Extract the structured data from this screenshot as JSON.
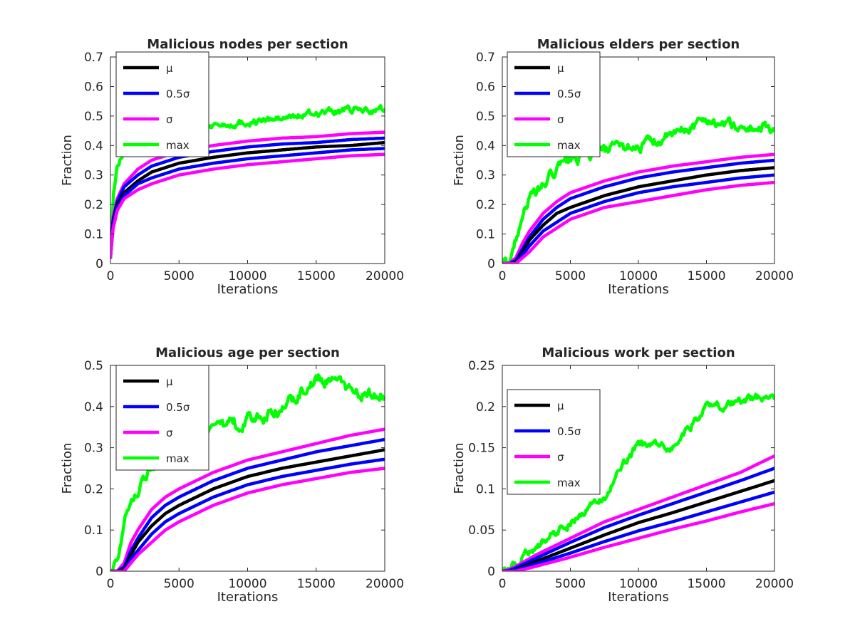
{
  "colors": {
    "mu": "#000000",
    "half_sigma": "#0000ff",
    "sigma": "#ff00ff",
    "max": "#00ff00",
    "axes": "#262626",
    "background": "#ffffff"
  },
  "chart_data": [
    {
      "type": "line",
      "title": "Malicious nodes per section",
      "xlabel": "Iterations",
      "ylabel": "Fraction",
      "xlim": [
        0,
        20000
      ],
      "ylim": [
        0,
        0.7
      ],
      "xticks": [
        0,
        5000,
        10000,
        15000,
        20000
      ],
      "xtick_labels": [
        "0",
        "5000",
        "10000",
        "15000",
        "20000"
      ],
      "yticks": [
        0,
        0.1,
        0.2,
        0.3,
        0.4,
        0.5,
        0.6,
        0.7
      ],
      "ytick_labels": [
        "0",
        "0.1",
        "0.2",
        "0.3",
        "0.4",
        "0.5",
        "0.6",
        "0.7"
      ],
      "grid": false,
      "legend_position": "top-left",
      "x": [
        0,
        200,
        500,
        1000,
        2000,
        3000,
        5000,
        7500,
        10000,
        12500,
        15000,
        17500,
        20000
      ],
      "series": [
        {
          "name": "max",
          "color": "#00ff00",
          "noise": 0.012,
          "values": [
            0.02,
            0.22,
            0.33,
            0.38,
            0.42,
            0.44,
            0.46,
            0.47,
            0.48,
            0.49,
            0.51,
            0.52,
            0.52
          ]
        },
        {
          "name": "σ",
          "color": "#ff00ff",
          "values": [
            0.02,
            0.16,
            0.22,
            0.27,
            0.32,
            0.35,
            0.38,
            0.4,
            0.415,
            0.425,
            0.43,
            0.44,
            0.445
          ]
        },
        {
          "name": "0.5σ",
          "color": "#0000ff",
          "values": [
            0.02,
            0.15,
            0.21,
            0.26,
            0.3,
            0.33,
            0.36,
            0.38,
            0.395,
            0.405,
            0.41,
            0.42,
            0.425
          ]
        },
        {
          "name": "μ",
          "color": "#000000",
          "values": [
            0.02,
            0.14,
            0.2,
            0.24,
            0.28,
            0.31,
            0.34,
            0.36,
            0.375,
            0.385,
            0.395,
            0.4,
            0.41
          ]
        },
        {
          "name": "0.5σ",
          "color": "#0000ff",
          "values": [
            0.02,
            0.13,
            0.19,
            0.23,
            0.27,
            0.29,
            0.32,
            0.34,
            0.355,
            0.365,
            0.375,
            0.385,
            0.39
          ]
        },
        {
          "name": "σ",
          "color": "#ff00ff",
          "values": [
            0.02,
            0.12,
            0.18,
            0.22,
            0.25,
            0.27,
            0.3,
            0.32,
            0.335,
            0.345,
            0.355,
            0.365,
            0.37
          ]
        }
      ],
      "legend": [
        "μ",
        "0.5σ",
        "σ",
        "max"
      ]
    },
    {
      "type": "line",
      "title": "Malicious elders per section",
      "xlabel": "Iterations",
      "ylabel": "Fraction",
      "xlim": [
        0,
        20000
      ],
      "ylim": [
        0,
        0.7
      ],
      "xticks": [
        0,
        5000,
        10000,
        15000,
        20000
      ],
      "xtick_labels": [
        "0",
        "5000",
        "10000",
        "15000",
        "20000"
      ],
      "yticks": [
        0,
        0.1,
        0.2,
        0.3,
        0.4,
        0.5,
        0.6,
        0.7
      ],
      "ytick_labels": [
        "0",
        "0.1",
        "0.2",
        "0.3",
        "0.4",
        "0.5",
        "0.6",
        "0.7"
      ],
      "grid": false,
      "legend_position": "top-left",
      "x": [
        0,
        500,
        1000,
        1500,
        2000,
        3000,
        4000,
        5000,
        7500,
        10000,
        12500,
        15000,
        17500,
        20000
      ],
      "series": [
        {
          "name": "max",
          "color": "#00ff00",
          "noise": 0.018,
          "values": [
            0,
            0.01,
            0.08,
            0.18,
            0.22,
            0.26,
            0.32,
            0.35,
            0.38,
            0.4,
            0.43,
            0.49,
            0.46,
            0.46
          ]
        },
        {
          "name": "σ",
          "color": "#ff00ff",
          "values": [
            0,
            0,
            0.02,
            0.07,
            0.11,
            0.17,
            0.21,
            0.24,
            0.28,
            0.31,
            0.33,
            0.345,
            0.36,
            0.37
          ]
        },
        {
          "name": "0.5σ",
          "color": "#0000ff",
          "values": [
            0,
            0,
            0.01,
            0.05,
            0.09,
            0.15,
            0.19,
            0.22,
            0.26,
            0.29,
            0.31,
            0.325,
            0.34,
            0.35
          ]
        },
        {
          "name": "μ",
          "color": "#000000",
          "values": [
            0,
            0,
            0.005,
            0.04,
            0.08,
            0.13,
            0.17,
            0.19,
            0.23,
            0.26,
            0.28,
            0.3,
            0.315,
            0.325
          ]
        },
        {
          "name": "0.5σ",
          "color": "#0000ff",
          "values": [
            0,
            0,
            0,
            0.03,
            0.06,
            0.11,
            0.14,
            0.17,
            0.21,
            0.24,
            0.26,
            0.275,
            0.29,
            0.3
          ]
        },
        {
          "name": "σ",
          "color": "#ff00ff",
          "values": [
            0,
            0,
            0,
            0.02,
            0.04,
            0.09,
            0.12,
            0.15,
            0.19,
            0.21,
            0.23,
            0.25,
            0.265,
            0.275
          ]
        }
      ],
      "legend": [
        "μ",
        "0.5σ",
        "σ",
        "max"
      ]
    },
    {
      "type": "line",
      "title": "Malicious age per section",
      "xlabel": "Iterations",
      "ylabel": "Fraction",
      "xlim": [
        0,
        20000
      ],
      "ylim": [
        0,
        0.5
      ],
      "xticks": [
        0,
        5000,
        10000,
        15000,
        20000
      ],
      "xtick_labels": [
        "0",
        "5000",
        "10000",
        "15000",
        "20000"
      ],
      "yticks": [
        0,
        0.1,
        0.2,
        0.3,
        0.4,
        0.5
      ],
      "ytick_labels": [
        "0",
        "0.1",
        "0.2",
        "0.3",
        "0.4",
        "0.5"
      ],
      "grid": false,
      "legend_position": "top-left",
      "x": [
        0,
        500,
        1000,
        1500,
        2000,
        3000,
        4000,
        5000,
        7500,
        10000,
        12500,
        15000,
        17500,
        20000
      ],
      "series": [
        {
          "name": "max",
          "color": "#00ff00",
          "noise": 0.015,
          "values": [
            0,
            0.03,
            0.13,
            0.18,
            0.2,
            0.25,
            0.29,
            0.31,
            0.34,
            0.37,
            0.39,
            0.47,
            0.44,
            0.43
          ]
        },
        {
          "name": "σ",
          "color": "#ff00ff",
          "values": [
            0,
            0,
            0.02,
            0.07,
            0.1,
            0.15,
            0.18,
            0.2,
            0.24,
            0.27,
            0.29,
            0.31,
            0.33,
            0.345
          ]
        },
        {
          "name": "0.5σ",
          "color": "#0000ff",
          "values": [
            0,
            0,
            0.01,
            0.05,
            0.08,
            0.13,
            0.16,
            0.18,
            0.22,
            0.25,
            0.27,
            0.29,
            0.305,
            0.32
          ]
        },
        {
          "name": "μ",
          "color": "#000000",
          "values": [
            0,
            0,
            0.005,
            0.04,
            0.07,
            0.11,
            0.14,
            0.16,
            0.2,
            0.23,
            0.25,
            0.265,
            0.28,
            0.295
          ]
        },
        {
          "name": "0.5σ",
          "color": "#0000ff",
          "values": [
            0,
            0,
            0,
            0.03,
            0.05,
            0.09,
            0.12,
            0.14,
            0.18,
            0.21,
            0.23,
            0.245,
            0.26,
            0.272
          ]
        },
        {
          "name": "σ",
          "color": "#ff00ff",
          "values": [
            0,
            0,
            0,
            0.02,
            0.04,
            0.07,
            0.1,
            0.12,
            0.16,
            0.19,
            0.21,
            0.225,
            0.24,
            0.25
          ]
        }
      ],
      "legend": [
        "μ",
        "0.5σ",
        "σ",
        "max"
      ]
    },
    {
      "type": "line",
      "title": "Malicious work per section",
      "xlabel": "Iterations",
      "ylabel": "Fraction",
      "xlim": [
        0,
        20000
      ],
      "ylim": [
        0,
        0.25
      ],
      "xticks": [
        0,
        5000,
        10000,
        15000,
        20000
      ],
      "xtick_labels": [
        "0",
        "5000",
        "10000",
        "15000",
        "20000"
      ],
      "yticks": [
        0,
        0.05,
        0.1,
        0.15,
        0.2,
        0.25
      ],
      "ytick_labels": [
        "0",
        "0.05",
        "0.1",
        "0.15",
        "0.2",
        "0.25"
      ],
      "grid": false,
      "legend_position": "top-left",
      "x": [
        0,
        500,
        1000,
        2500,
        5000,
        7500,
        10000,
        12500,
        15000,
        17500,
        20000
      ],
      "series": [
        {
          "name": "max",
          "color": "#00ff00",
          "noise": 0.005,
          "values": [
            0,
            0.003,
            0.01,
            0.03,
            0.06,
            0.09,
            0.155,
            0.15,
            0.2,
            0.205,
            0.215
          ]
        },
        {
          "name": "σ",
          "color": "#ff00ff",
          "values": [
            0,
            0.002,
            0.006,
            0.02,
            0.04,
            0.06,
            0.075,
            0.09,
            0.105,
            0.12,
            0.14
          ]
        },
        {
          "name": "0.5σ",
          "color": "#0000ff",
          "values": [
            0,
            0.001,
            0.004,
            0.016,
            0.035,
            0.053,
            0.068,
            0.082,
            0.096,
            0.11,
            0.125
          ]
        },
        {
          "name": "μ",
          "color": "#000000",
          "values": [
            0,
            0,
            0.002,
            0.012,
            0.028,
            0.044,
            0.059,
            0.071,
            0.084,
            0.097,
            0.11
          ]
        },
        {
          "name": "0.5σ",
          "color": "#0000ff",
          "values": [
            0,
            0,
            0.001,
            0.009,
            0.022,
            0.036,
            0.049,
            0.06,
            0.072,
            0.084,
            0.096
          ]
        },
        {
          "name": "σ",
          "color": "#ff00ff",
          "values": [
            0,
            0,
            0,
            0.006,
            0.017,
            0.029,
            0.04,
            0.051,
            0.061,
            0.072,
            0.082
          ]
        }
      ],
      "legend": [
        "μ",
        "0.5σ",
        "σ",
        "max"
      ]
    }
  ]
}
